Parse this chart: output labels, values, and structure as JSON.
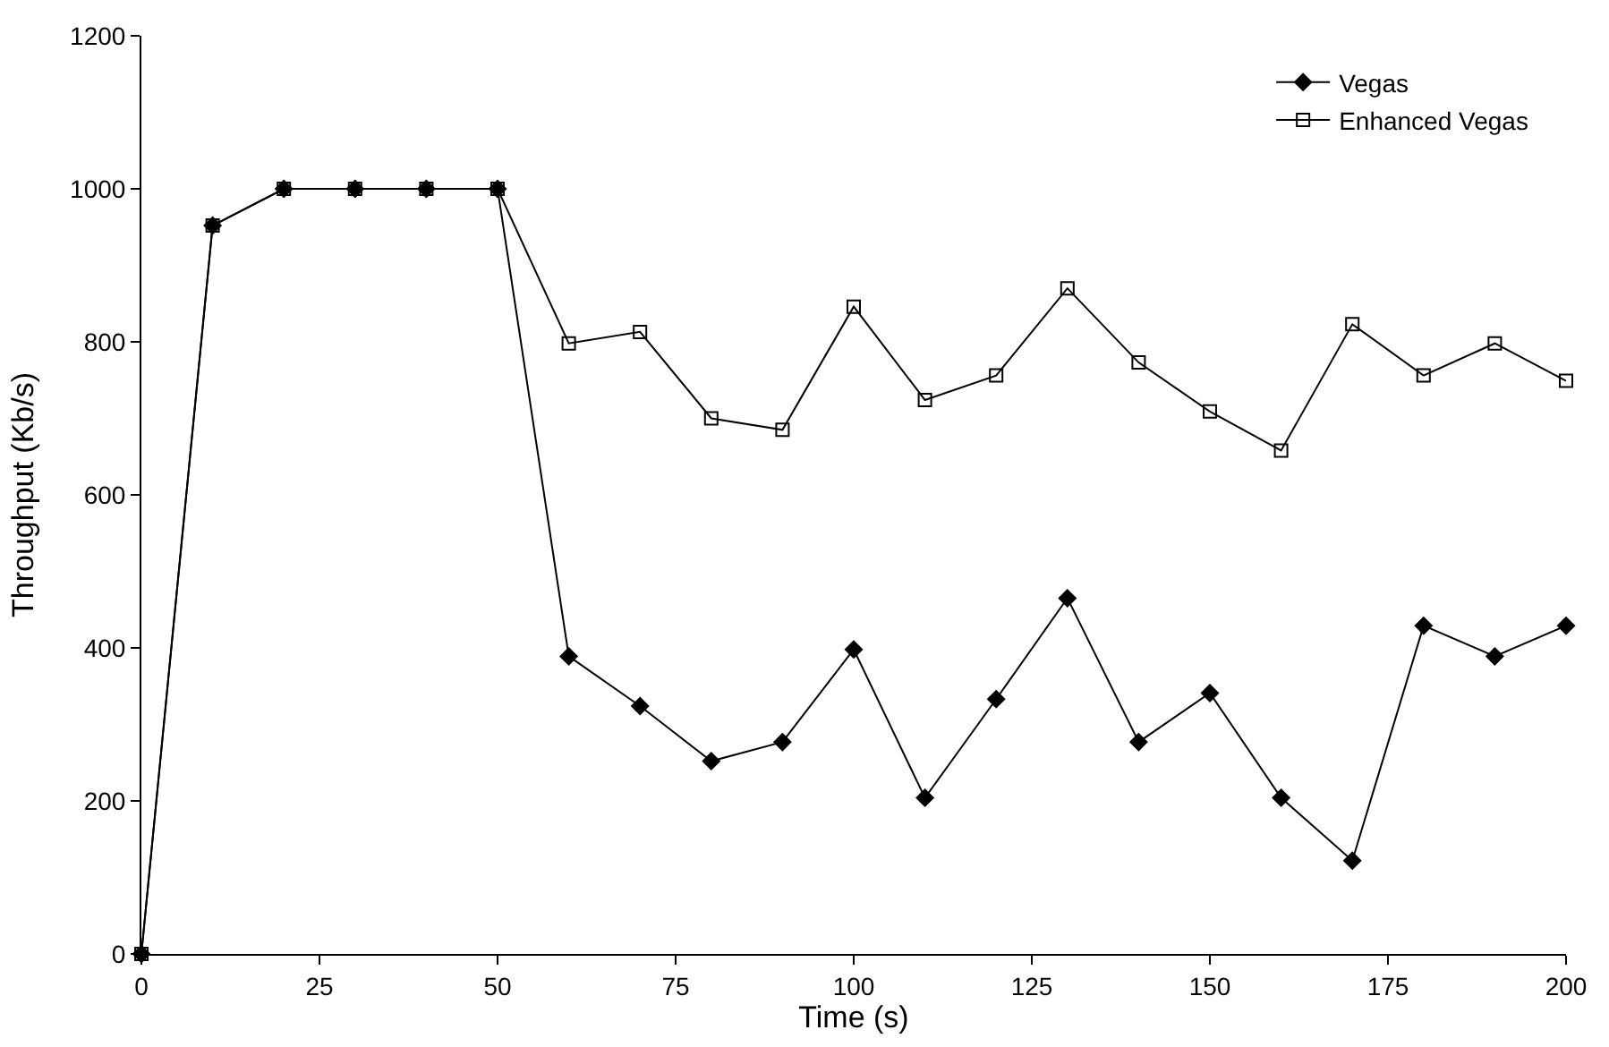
{
  "chart_data": {
    "type": "line",
    "xlabel": "Time (s)",
    "ylabel": "Throughput (Kb/s)",
    "x": [
      0,
      10,
      20,
      30,
      40,
      50,
      60,
      70,
      80,
      90,
      100,
      110,
      120,
      130,
      140,
      150,
      160,
      170,
      180,
      190,
      200
    ],
    "series": [
      {
        "name": "Vegas",
        "color": "#000000",
        "marker": "diamond",
        "values": [
          0,
          952,
          1000,
          1000,
          1000,
          1000,
          389,
          324,
          252,
          277,
          398,
          204,
          333,
          465,
          277,
          341,
          204,
          122,
          429,
          389,
          429
        ]
      },
      {
        "name": "Enhanced Vegas",
        "color": "#000000",
        "marker": "square-open",
        "values": [
          0,
          952,
          1000,
          1000,
          1000,
          1000,
          798,
          813,
          700,
          685,
          846,
          724,
          756,
          870,
          773,
          709,
          658,
          823,
          756,
          798,
          749
        ]
      }
    ],
    "xlim": [
      0,
      200
    ],
    "xticks": [
      0,
      25,
      50,
      75,
      100,
      125,
      150,
      175,
      200
    ],
    "ylim": [
      0,
      1200
    ],
    "yticks": [
      0,
      200,
      400,
      600,
      800,
      1000,
      1200
    ],
    "legend": "top right",
    "line_style": "solid"
  }
}
